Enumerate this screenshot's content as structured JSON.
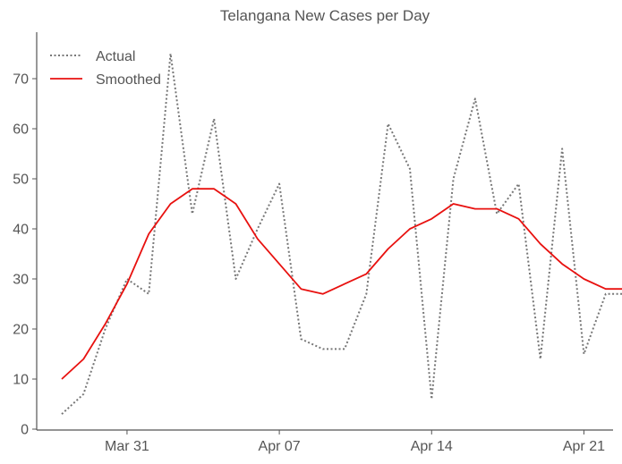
{
  "chart_data": {
    "type": "line",
    "title": "Telangana New Cases per Day",
    "xlabel": "",
    "ylabel": "",
    "x": [
      "Mar 28",
      "Mar 29",
      "Mar 30",
      "Mar 31",
      "Apr 01",
      "Apr 02",
      "Apr 03",
      "Apr 04",
      "Apr 05",
      "Apr 06",
      "Apr 07",
      "Apr 08",
      "Apr 09",
      "Apr 10",
      "Apr 11",
      "Apr 12",
      "Apr 13",
      "Apr 14",
      "Apr 15",
      "Apr 16",
      "Apr 17",
      "Apr 18",
      "Apr 19",
      "Apr 20",
      "Apr 21",
      "Apr 22",
      "Apr 23"
    ],
    "x_range": [
      "Mar 27",
      "Apr 24"
    ],
    "x_ticks": [
      "Mar 31",
      "Apr 07",
      "Apr 14",
      "Apr 21"
    ],
    "ylim": [
      0,
      78
    ],
    "y_ticks": [
      0,
      10,
      20,
      30,
      40,
      50,
      60,
      70
    ],
    "grid": false,
    "legend_position": "top-left",
    "series": [
      {
        "name": "Actual",
        "style": "dotted",
        "color": "#777777",
        "values": [
          3,
          7,
          20,
          30,
          27,
          75,
          43,
          62,
          30,
          40,
          49,
          18,
          16,
          16,
          27,
          61,
          52,
          6,
          50,
          66,
          43,
          49,
          14,
          56,
          15,
          27,
          27
        ]
      },
      {
        "name": "Smoothed",
        "style": "solid",
        "color": "#e8110f",
        "values": [
          10,
          14,
          21,
          29,
          39,
          45,
          48,
          48,
          45,
          38,
          33,
          28,
          27,
          29,
          31,
          36,
          40,
          42,
          45,
          44,
          44,
          42,
          37,
          33,
          30,
          28,
          28
        ]
      }
    ]
  }
}
